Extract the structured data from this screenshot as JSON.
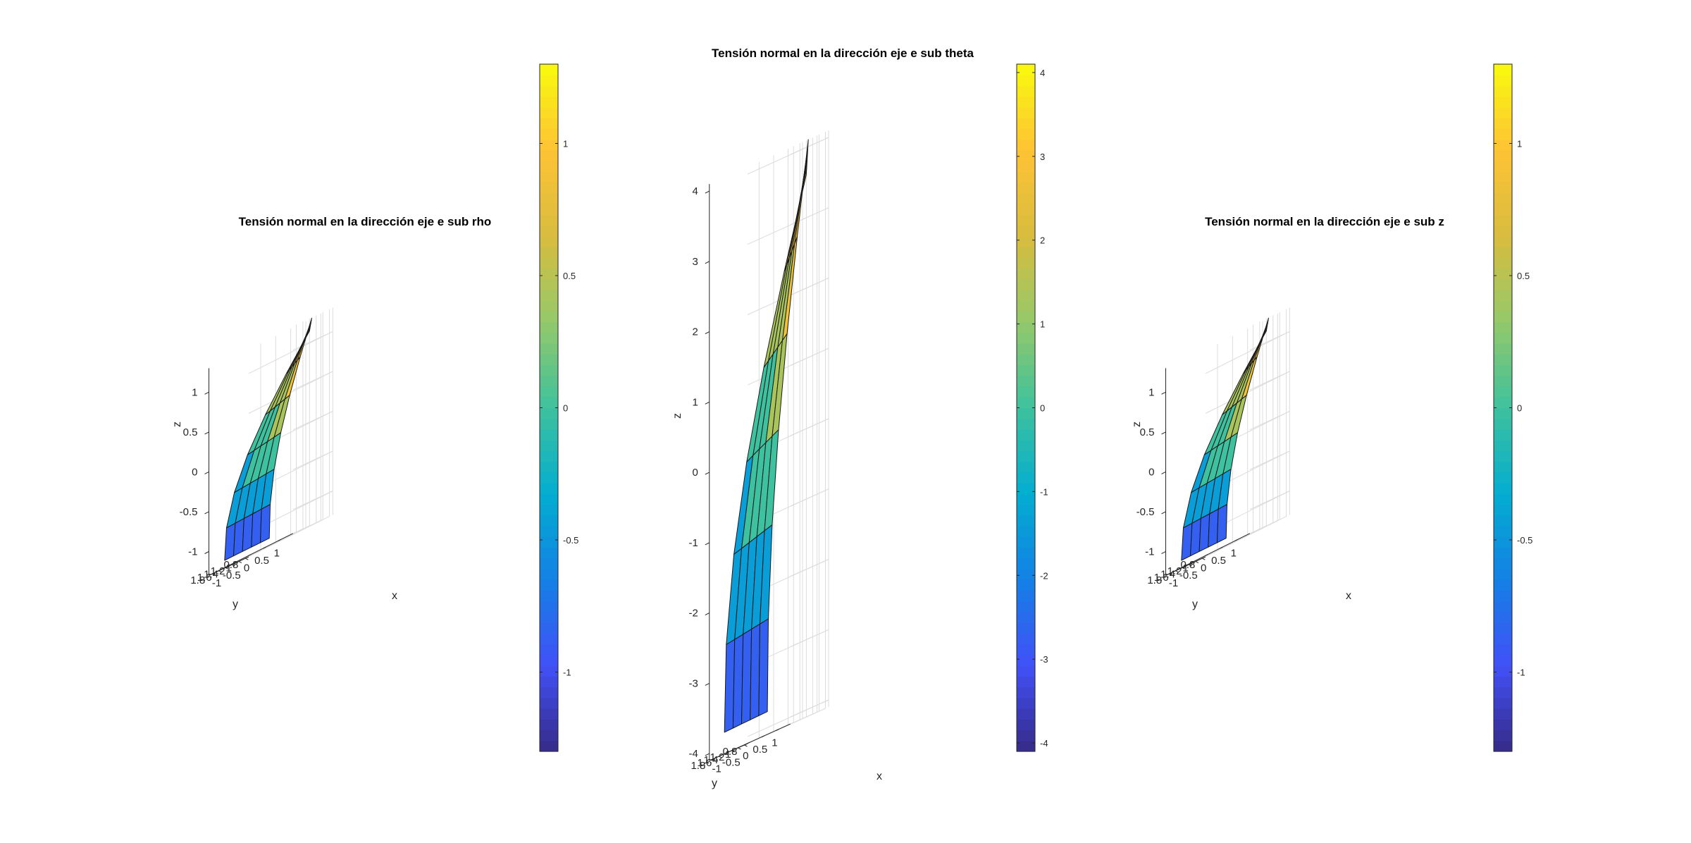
{
  "figure": {
    "background": "#ffffff",
    "colormap": "parula"
  },
  "chart_data": [
    {
      "type": "surface3d",
      "title": "Tensión normal en la dirección eje e sub rho",
      "xlabel": "x",
      "ylabel": "y",
      "zlabel": "z",
      "xlim": [
        -1.4,
        1.4
      ],
      "ylim": [
        0.7,
        1.9
      ],
      "zlim": [
        -1.3,
        1.3
      ],
      "xticks": [
        -1,
        -0.5,
        0,
        0.5,
        1
      ],
      "xtick_labels": [
        "-1",
        "-0.5",
        "0",
        "0.5",
        "1"
      ],
      "yticks": [
        0.8,
        1,
        1.2,
        1.4,
        1.6,
        1.8
      ],
      "ytick_labels": [
        "0.8",
        "1",
        "1.2",
        "1.4",
        "1.6",
        "1.8"
      ],
      "zticks": [
        -1,
        -0.5,
        0,
        0.5,
        1
      ],
      "ztick_labels": [
        "-1",
        "-0.5",
        "0",
        "0.5",
        "1"
      ],
      "surface": {
        "r_range": [
          1,
          2
        ],
        "theta_range_deg": [
          -45,
          45
        ],
        "n_r": 6,
        "n_theta": 7,
        "z_range": [
          -1.3,
          1.3
        ]
      },
      "colorbar": {
        "clim": [
          -1.3,
          1.3
        ],
        "ticks": [
          -1,
          -0.5,
          0,
          0.5,
          1
        ],
        "tick_labels": [
          "-1",
          "-0.5",
          "0",
          "0.5",
          "1"
        ]
      }
    },
    {
      "type": "surface3d",
      "title": "Tensión normal en la dirección eje e sub theta",
      "xlabel": "x",
      "ylabel": "y",
      "zlabel": "z",
      "xlim": [
        -1.4,
        1.4
      ],
      "ylim": [
        0.7,
        1.9
      ],
      "zlim": [
        -4.1,
        4.1
      ],
      "xticks": [
        -1,
        -0.5,
        0,
        0.5,
        1
      ],
      "xtick_labels": [
        "-1",
        "-0.5",
        "0",
        "0.5",
        "1"
      ],
      "yticks": [
        0.8,
        1,
        1.2,
        1.4,
        1.6,
        1.8
      ],
      "ytick_labels": [
        "0.8",
        "1",
        "1.2",
        "1.4",
        "1.6",
        "1.8"
      ],
      "zticks": [
        -4,
        -3,
        -2,
        -1,
        0,
        1,
        2,
        3,
        4
      ],
      "ztick_labels": [
        "-4",
        "-3",
        "-2",
        "-1",
        "0",
        "1",
        "2",
        "3",
        "4"
      ],
      "surface": {
        "r_range": [
          1,
          2
        ],
        "theta_range_deg": [
          -45,
          45
        ],
        "n_r": 6,
        "n_theta": 7,
        "z_range": [
          -4.1,
          4.1
        ]
      },
      "colorbar": {
        "clim": [
          -4.1,
          4.1
        ],
        "ticks": [
          -4,
          -3,
          -2,
          -1,
          0,
          1,
          2,
          3,
          4
        ],
        "tick_labels": [
          "-4",
          "-3",
          "-2",
          "-1",
          "0",
          "1",
          "2",
          "3",
          "4"
        ]
      }
    },
    {
      "type": "surface3d",
      "title": "Tensión normal en la dirección eje e sub z",
      "xlabel": "x",
      "ylabel": "y",
      "zlabel": "z",
      "xlim": [
        -1.4,
        1.4
      ],
      "ylim": [
        0.7,
        1.9
      ],
      "zlim": [
        -1.3,
        1.3
      ],
      "xticks": [
        -1,
        -0.5,
        0,
        0.5,
        1
      ],
      "xtick_labels": [
        "-1",
        "-0.5",
        "0",
        "0.5",
        "1"
      ],
      "yticks": [
        0.8,
        1,
        1.2,
        1.4,
        1.6,
        1.8
      ],
      "ytick_labels": [
        "0.8",
        "1",
        "1.2",
        "1.4",
        "1.6",
        "1.8"
      ],
      "zticks": [
        -1,
        -0.5,
        0,
        0.5,
        1
      ],
      "ztick_labels": [
        "-1",
        "-0.5",
        "0",
        "0.5",
        "1"
      ],
      "surface": {
        "r_range": [
          1,
          2
        ],
        "theta_range_deg": [
          -45,
          45
        ],
        "n_r": 6,
        "n_theta": 7,
        "z_range": [
          -1.3,
          1.3
        ]
      },
      "colorbar": {
        "clim": [
          -1.3,
          1.3
        ],
        "ticks": [
          -1,
          -0.5,
          0,
          0.5,
          1
        ],
        "tick_labels": [
          "-1",
          "-0.5",
          "0",
          "0.5",
          "1"
        ]
      }
    }
  ]
}
